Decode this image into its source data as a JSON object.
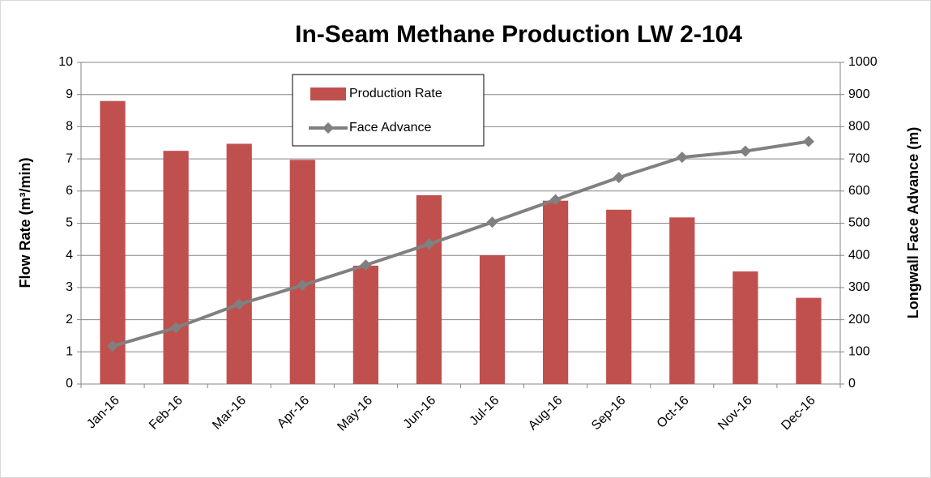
{
  "chart_data": {
    "type": "bar",
    "title": "In-Seam Methane Production LW 2-104",
    "ylabel": "Flow Rate (m³/min)",
    "y2label": "Longwall Face Advance (m)",
    "categories": [
      "Jan-16",
      "Feb-16",
      "Mar-16",
      "Apr-16",
      "May-16",
      "Jun-16",
      "Jul-16",
      "Aug-16",
      "Sep-16",
      "Oct-16",
      "Nov-16",
      "Dec-16"
    ],
    "series": [
      {
        "name": "Production Rate",
        "type": "bar",
        "color": "#c0504d",
        "values": [
          8.8,
          7.25,
          7.47,
          6.97,
          3.68,
          5.87,
          4.0,
          5.7,
          5.42,
          5.18,
          3.5,
          2.68
        ]
      },
      {
        "name": "Face Advance",
        "type": "line",
        "axis": "y2",
        "color": "#808080",
        "values": [
          118,
          175,
          248,
          307,
          370,
          435,
          503,
          573,
          642,
          705,
          724,
          754
        ]
      }
    ],
    "ylim": [
      0,
      10
    ],
    "yticks": [
      0,
      1,
      2,
      3,
      4,
      5,
      6,
      7,
      8,
      9,
      10
    ],
    "y2lim": [
      0,
      1000
    ],
    "y2ticks": [
      0,
      100,
      200,
      300,
      400,
      500,
      600,
      700,
      800,
      900,
      1000
    ],
    "grid": true,
    "legend": "top"
  }
}
